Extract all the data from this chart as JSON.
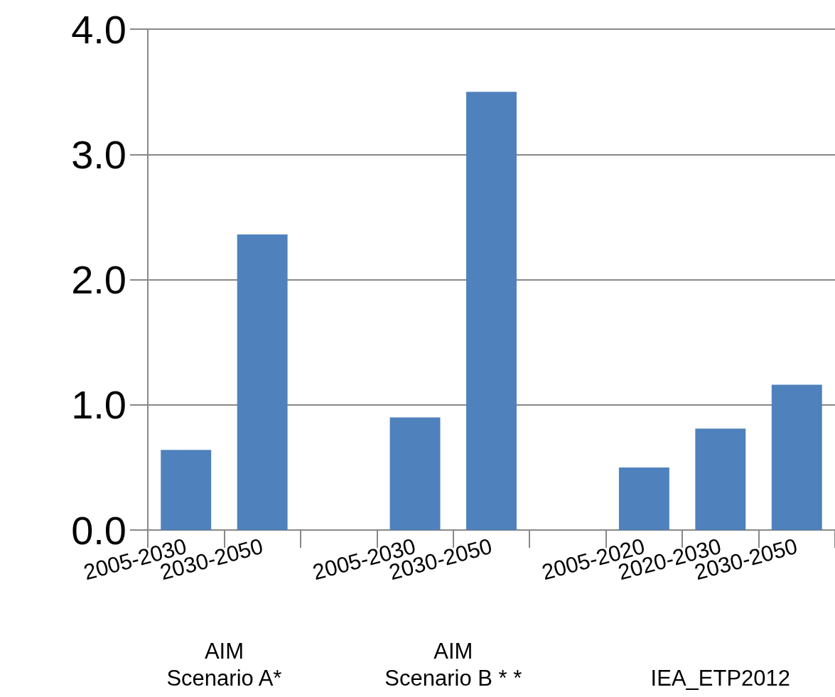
{
  "chart_data": {
    "type": "bar",
    "categories": [
      "2005-2030",
      "2030-2050",
      null,
      "2005-2030",
      "2030-2050",
      null,
      "2005-2020",
      "2020-2030",
      "2030-2050"
    ],
    "values": [
      0.64,
      2.36,
      null,
      0.9,
      3.5,
      null,
      0.5,
      0.81,
      1.16
    ],
    "color": "#4f81bd",
    "ylim": [
      0,
      4
    ],
    "yticks": [
      {
        "value": 0,
        "label": "0.0"
      },
      {
        "value": 1,
        "label": "1.0"
      },
      {
        "value": 2,
        "label": "2.0"
      },
      {
        "value": 3,
        "label": "3.0"
      },
      {
        "value": 4,
        "label": "4.0"
      }
    ],
    "grid": "y",
    "annotations": [
      "AIM\nScenario A*",
      "AIM\nScenario B * *",
      "IEA_ETP2012"
    ]
  }
}
